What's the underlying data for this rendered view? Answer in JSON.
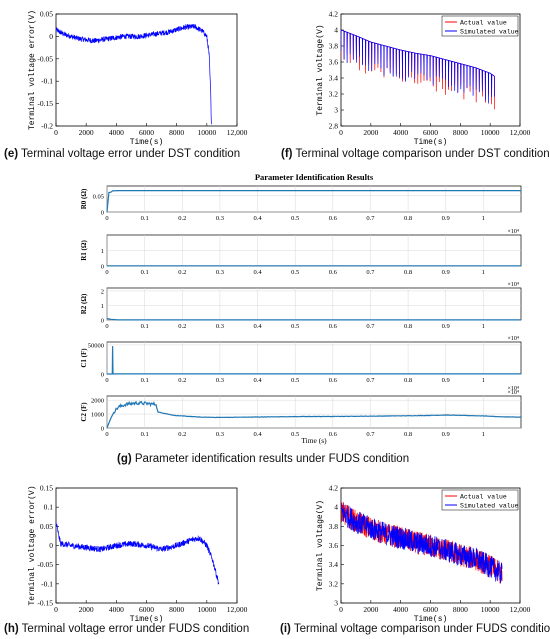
{
  "captions": {
    "e_letter": "(e)",
    "e_text": " Terminal voltage error under DST condition",
    "f_letter": "(f)",
    "f_text": " Terminal voltage comparison under DST condition",
    "g_letter": "(g)",
    "g_text": " Parameter identification results under FUDS condition",
    "h_letter": "(h)",
    "h_text": " Terminal voltage error under FUDS condition",
    "i_letter": "(i)",
    "i_text": " Terminal voltage comparison under FUDS condition"
  },
  "colors": {
    "blue": "#0000ff",
    "red": "#ff0000",
    "param_blue": "#1f77b4"
  },
  "chart_data": [
    {
      "id": "e",
      "type": "line",
      "xlabel": "Time(s)",
      "ylabel": "Terminal voltage error(V)",
      "xlim": [
        0,
        12000
      ],
      "ylim": [
        -0.2,
        0.05
      ],
      "xticks": [
        0,
        2000,
        4000,
        6000,
        8000,
        10000,
        12000
      ],
      "xticklabels": [
        "0",
        "2000",
        "4000",
        "6000",
        "8000",
        "10000",
        "12,000"
      ],
      "yticks": [
        -0.2,
        -0.15,
        -0.1,
        -0.05,
        0,
        0.05
      ],
      "yticklabels": [
        "-0.2",
        "-0.15",
        "-0.1",
        "-0.05",
        "0",
        "0.05"
      ],
      "series": [
        {
          "color": "#0000ff",
          "x": [
            0,
            500,
            1500,
            2500,
            3500,
            4500,
            5500,
            6500,
            7500,
            8500,
            9200,
            9700,
            10000,
            10150,
            10250,
            10300
          ],
          "y": [
            0.015,
            0.005,
            -0.005,
            -0.01,
            -0.005,
            0.0,
            0.0,
            0.005,
            0.01,
            0.02,
            0.022,
            0.012,
            0.0,
            -0.04,
            -0.12,
            -0.19
          ],
          "noise": 0.006
        }
      ]
    },
    {
      "id": "f",
      "type": "line",
      "xlabel": "Time(s)",
      "ylabel": "Terminal voltage(V)",
      "xlim": [
        0,
        12000
      ],
      "ylim": [
        2.8,
        4.2
      ],
      "xticks": [
        0,
        2000,
        4000,
        6000,
        8000,
        10000,
        12000
      ],
      "xticklabels": [
        "0",
        "2000",
        "4000",
        "6000",
        "8000",
        "10000",
        "12,000"
      ],
      "yticks": [
        2.8,
        3.0,
        3.2,
        3.4,
        3.6,
        3.8,
        4.0,
        4.2
      ],
      "yticklabels": [
        "2.8",
        "3",
        "3.2",
        "3.4",
        "3.6",
        "3.8",
        "4",
        "4.2"
      ],
      "legend": [
        "Actual value",
        "Simulated value"
      ],
      "legend_loc": "top-right",
      "series": [
        {
          "name": "Actual value",
          "color": "#ff0000",
          "x": [
            0,
            1000,
            2000,
            3000,
            4000,
            5000,
            6000,
            7000,
            8000,
            9000,
            10000,
            10300
          ],
          "y": [
            4.0,
            3.93,
            3.85,
            3.8,
            3.75,
            3.71,
            3.68,
            3.63,
            3.58,
            3.53,
            3.46,
            3.42
          ],
          "dip": 0.45
        },
        {
          "name": "Simulated value",
          "color": "#0000ff",
          "x": [
            0,
            1000,
            2000,
            3000,
            4000,
            5000,
            6000,
            7000,
            8000,
            9000,
            10000,
            10300
          ],
          "y": [
            4.0,
            3.93,
            3.85,
            3.8,
            3.75,
            3.71,
            3.68,
            3.63,
            3.58,
            3.53,
            3.46,
            3.42
          ],
          "dip": 0.4
        }
      ]
    },
    {
      "id": "g",
      "type": "line",
      "title": "Parameter Identification Results",
      "xlabel": "Time (s)",
      "xlim": [
        0,
        11000
      ],
      "xticks": [
        0,
        1000,
        2000,
        3000,
        4000,
        5000,
        6000,
        7000,
        8000,
        9000,
        10000
      ],
      "xticklabels": [
        "0",
        "0.1",
        "0.2",
        "0.3",
        "0.4",
        "0.5",
        "0.6",
        "0.7",
        "0.8",
        "0.9",
        "1"
      ],
      "exponent": "×10⁴",
      "subplots": [
        {
          "ylabel": "R0 (Ω)",
          "ylim": [
            0,
            0.08
          ],
          "yticks": [
            0,
            0.05
          ],
          "yticklabels": [
            "0",
            "0.05"
          ],
          "x": [
            0,
            50,
            100,
            150,
            300,
            11000
          ],
          "y": [
            0.0,
            0.06,
            0.061,
            0.065,
            0.066,
            0.066
          ]
        },
        {
          "ylabel": "R1 (Ω)",
          "ylim": [
            0,
            2
          ],
          "yticks": [
            0,
            1
          ],
          "yticklabels": [
            "0",
            "1"
          ],
          "x": [
            0,
            11000
          ],
          "y": [
            0.01,
            0.01
          ]
        },
        {
          "ylabel": "R2 (Ω)",
          "ylim": [
            0,
            2.2
          ],
          "yticks": [
            0,
            1,
            2
          ],
          "yticklabels": [
            "0",
            "1",
            "2"
          ],
          "x": [
            0,
            100,
            300,
            11000
          ],
          "y": [
            0.1,
            0.05,
            0.01,
            0.01
          ]
        },
        {
          "ylabel": "C1 (F)",
          "ylim": [
            0,
            55000
          ],
          "yticks": [
            0,
            50000
          ],
          "yticklabels": [
            "0",
            "50000"
          ],
          "x": [
            0,
            140,
            150,
            160,
            170,
            11000
          ],
          "y": [
            0,
            0,
            48000,
            300,
            100,
            100
          ]
        },
        {
          "ylabel": "C2 (F)",
          "ylim": [
            0,
            2300
          ],
          "yticks": [
            0,
            1000,
            2000
          ],
          "yticklabels": [
            "0",
            "1000",
            "2000"
          ],
          "x": [
            0,
            100,
            200,
            300,
            500,
            800,
            1100,
            1300,
            1350,
            1800,
            2500,
            3000,
            4000,
            5000,
            6000,
            7000,
            8000,
            8500,
            9000,
            10000,
            10500,
            11000
          ],
          "y": [
            0,
            700,
            1200,
            1500,
            1700,
            1800,
            1750,
            1700,
            1150,
            900,
            780,
            760,
            790,
            820,
            830,
            850,
            880,
            900,
            930,
            870,
            800,
            780
          ],
          "noise": 60
        }
      ]
    },
    {
      "id": "h",
      "type": "line",
      "xlabel": "Time(s)",
      "ylabel": "Terminal voltage error(V)",
      "xlim": [
        0,
        12000
      ],
      "ylim": [
        -0.15,
        0.15
      ],
      "xticks": [
        0,
        2000,
        4000,
        6000,
        8000,
        10000,
        12000
      ],
      "xticklabels": [
        "0",
        "2000",
        "4000",
        "6000",
        "8000",
        "10000",
        "12,000"
      ],
      "yticks": [
        -0.15,
        -0.1,
        -0.05,
        0,
        0.05,
        0.1,
        0.15
      ],
      "yticklabels": [
        "-0.15",
        "-0.1",
        "-0.05",
        "0",
        "0.05",
        "0.1",
        "0.15"
      ],
      "series": [
        {
          "color": "#0000ff",
          "x": [
            0,
            300,
            1000,
            2000,
            3000,
            4000,
            5000,
            6000,
            7000,
            8000,
            9000,
            9500,
            10000,
            10400,
            10800
          ],
          "y": [
            0.06,
            0.005,
            0.0,
            -0.005,
            -0.01,
            0.0,
            0.005,
            0.0,
            -0.01,
            0.0,
            0.015,
            0.02,
            0.0,
            -0.04,
            -0.1
          ],
          "noise": 0.008
        }
      ]
    },
    {
      "id": "i",
      "type": "line",
      "xlabel": "Time(s)",
      "ylabel": "Terminal voltage(V)",
      "xlim": [
        0,
        12000
      ],
      "ylim": [
        3.0,
        4.2
      ],
      "xticks": [
        0,
        2000,
        4000,
        6000,
        8000,
        10000,
        12000
      ],
      "xticklabels": [
        "0",
        "2000",
        "4000",
        "6000",
        "8000",
        "10000",
        "12,000"
      ],
      "yticks": [
        3.0,
        3.2,
        3.4,
        3.6,
        3.8,
        4.0,
        4.2
      ],
      "yticklabels": [
        "3",
        "3.2",
        "3.4",
        "3.6",
        "3.8",
        "4",
        "4.2"
      ],
      "legend": [
        "Actual value",
        "Simulated value"
      ],
      "legend_loc": "top-right",
      "series": [
        {
          "name": "Actual value",
          "color": "#ff0000",
          "x": [
            0,
            1000,
            2000,
            3000,
            4000,
            5000,
            6000,
            7000,
            8000,
            9000,
            10000,
            10800
          ],
          "y": [
            3.95,
            3.85,
            3.78,
            3.72,
            3.68,
            3.63,
            3.6,
            3.55,
            3.5,
            3.46,
            3.38,
            3.3
          ],
          "noise": 0.12
        },
        {
          "name": "Simulated value",
          "color": "#0000ff",
          "x": [
            0,
            1000,
            2000,
            3000,
            4000,
            5000,
            6000,
            7000,
            8000,
            9000,
            10000,
            10800
          ],
          "y": [
            3.95,
            3.85,
            3.78,
            3.72,
            3.68,
            3.63,
            3.6,
            3.55,
            3.5,
            3.46,
            3.38,
            3.3
          ],
          "noise": 0.12
        }
      ]
    }
  ]
}
